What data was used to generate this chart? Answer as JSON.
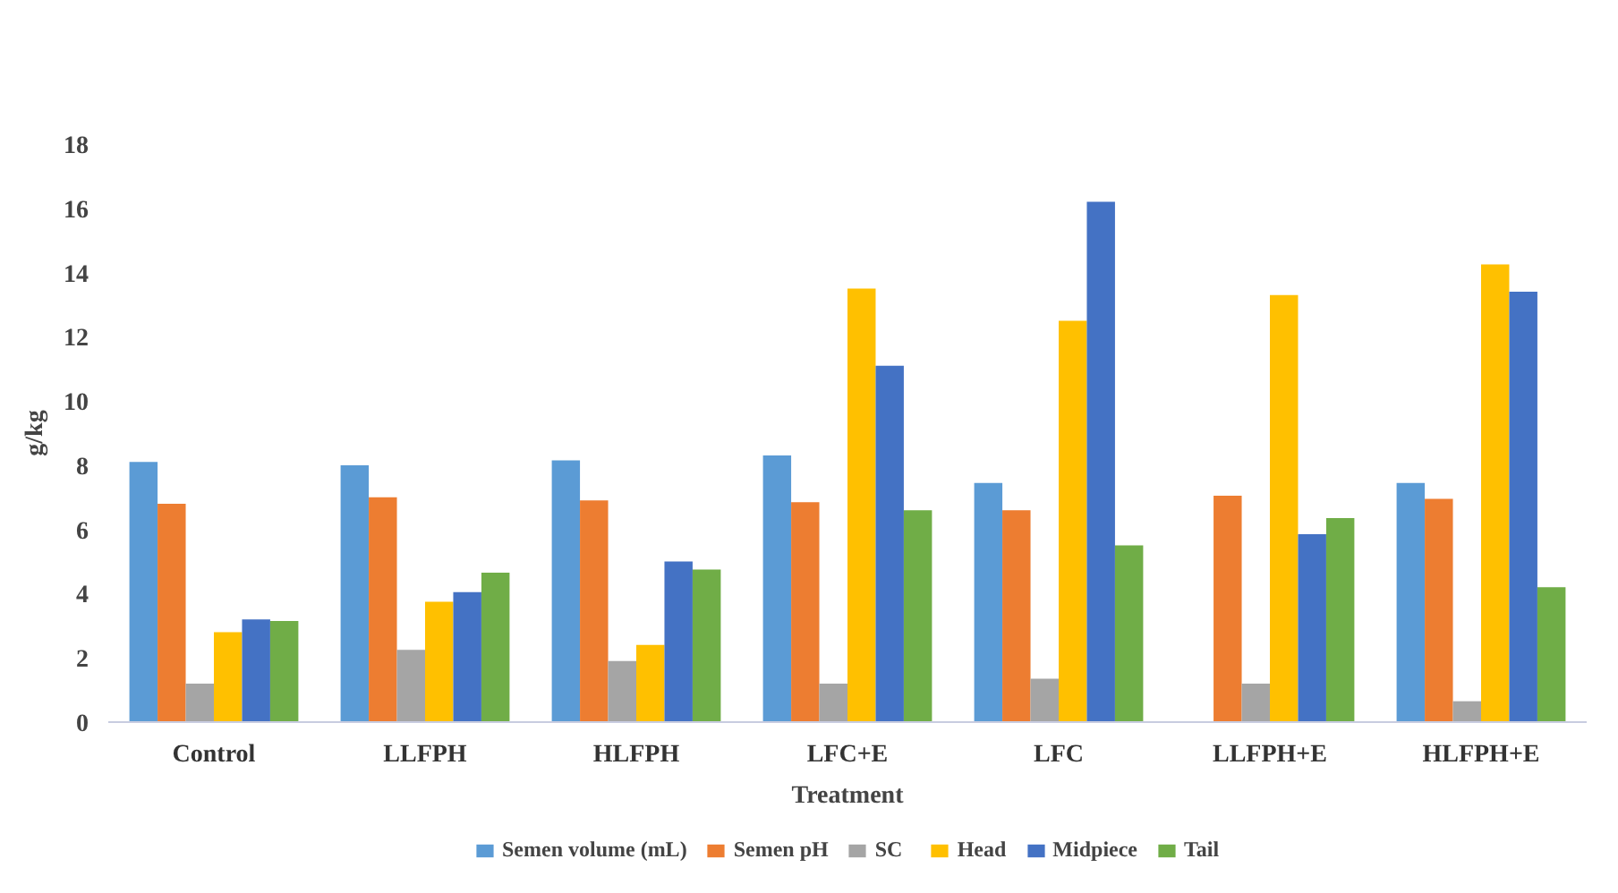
{
  "chart_data": {
    "type": "bar",
    "xlabel": "Treatment",
    "ylabel": "g/kg",
    "categories": [
      "Control",
      "LLFPH",
      "HLFPH",
      "LFC+E",
      "LFC",
      "LLFPH+E",
      "HLFPH+E"
    ],
    "series": [
      {
        "name": "Semen volume (mL)",
        "color": "#5b9bd5",
        "values": [
          8.1,
          8.0,
          8.15,
          8.3,
          7.45,
          null,
          7.45
        ]
      },
      {
        "name": "Semen pH",
        "color": "#ed7d31",
        "values": [
          6.8,
          7.0,
          6.9,
          6.85,
          6.6,
          7.05,
          6.95
        ]
      },
      {
        "name": "SC",
        "color": "#a5a5a5",
        "values": [
          1.2,
          2.25,
          1.9,
          1.2,
          1.35,
          1.2,
          0.65
        ]
      },
      {
        "name": "Head",
        "color": "#ffc000",
        "values": [
          2.8,
          3.75,
          2.4,
          13.5,
          12.5,
          13.3,
          14.25
        ]
      },
      {
        "name": "Midpiece",
        "color": "#4472c4",
        "values": [
          3.2,
          4.05,
          5.0,
          11.1,
          16.2,
          5.85,
          13.4
        ]
      },
      {
        "name": "Tail",
        "color": "#70ad47",
        "values": [
          3.15,
          4.65,
          4.75,
          6.6,
          5.5,
          6.35,
          4.2
        ]
      }
    ],
    "ylim": [
      0,
      18
    ],
    "yticks": [
      0,
      2,
      4,
      6,
      8,
      10,
      12,
      14,
      16,
      18
    ],
    "grid": false,
    "legend": "bottom"
  }
}
